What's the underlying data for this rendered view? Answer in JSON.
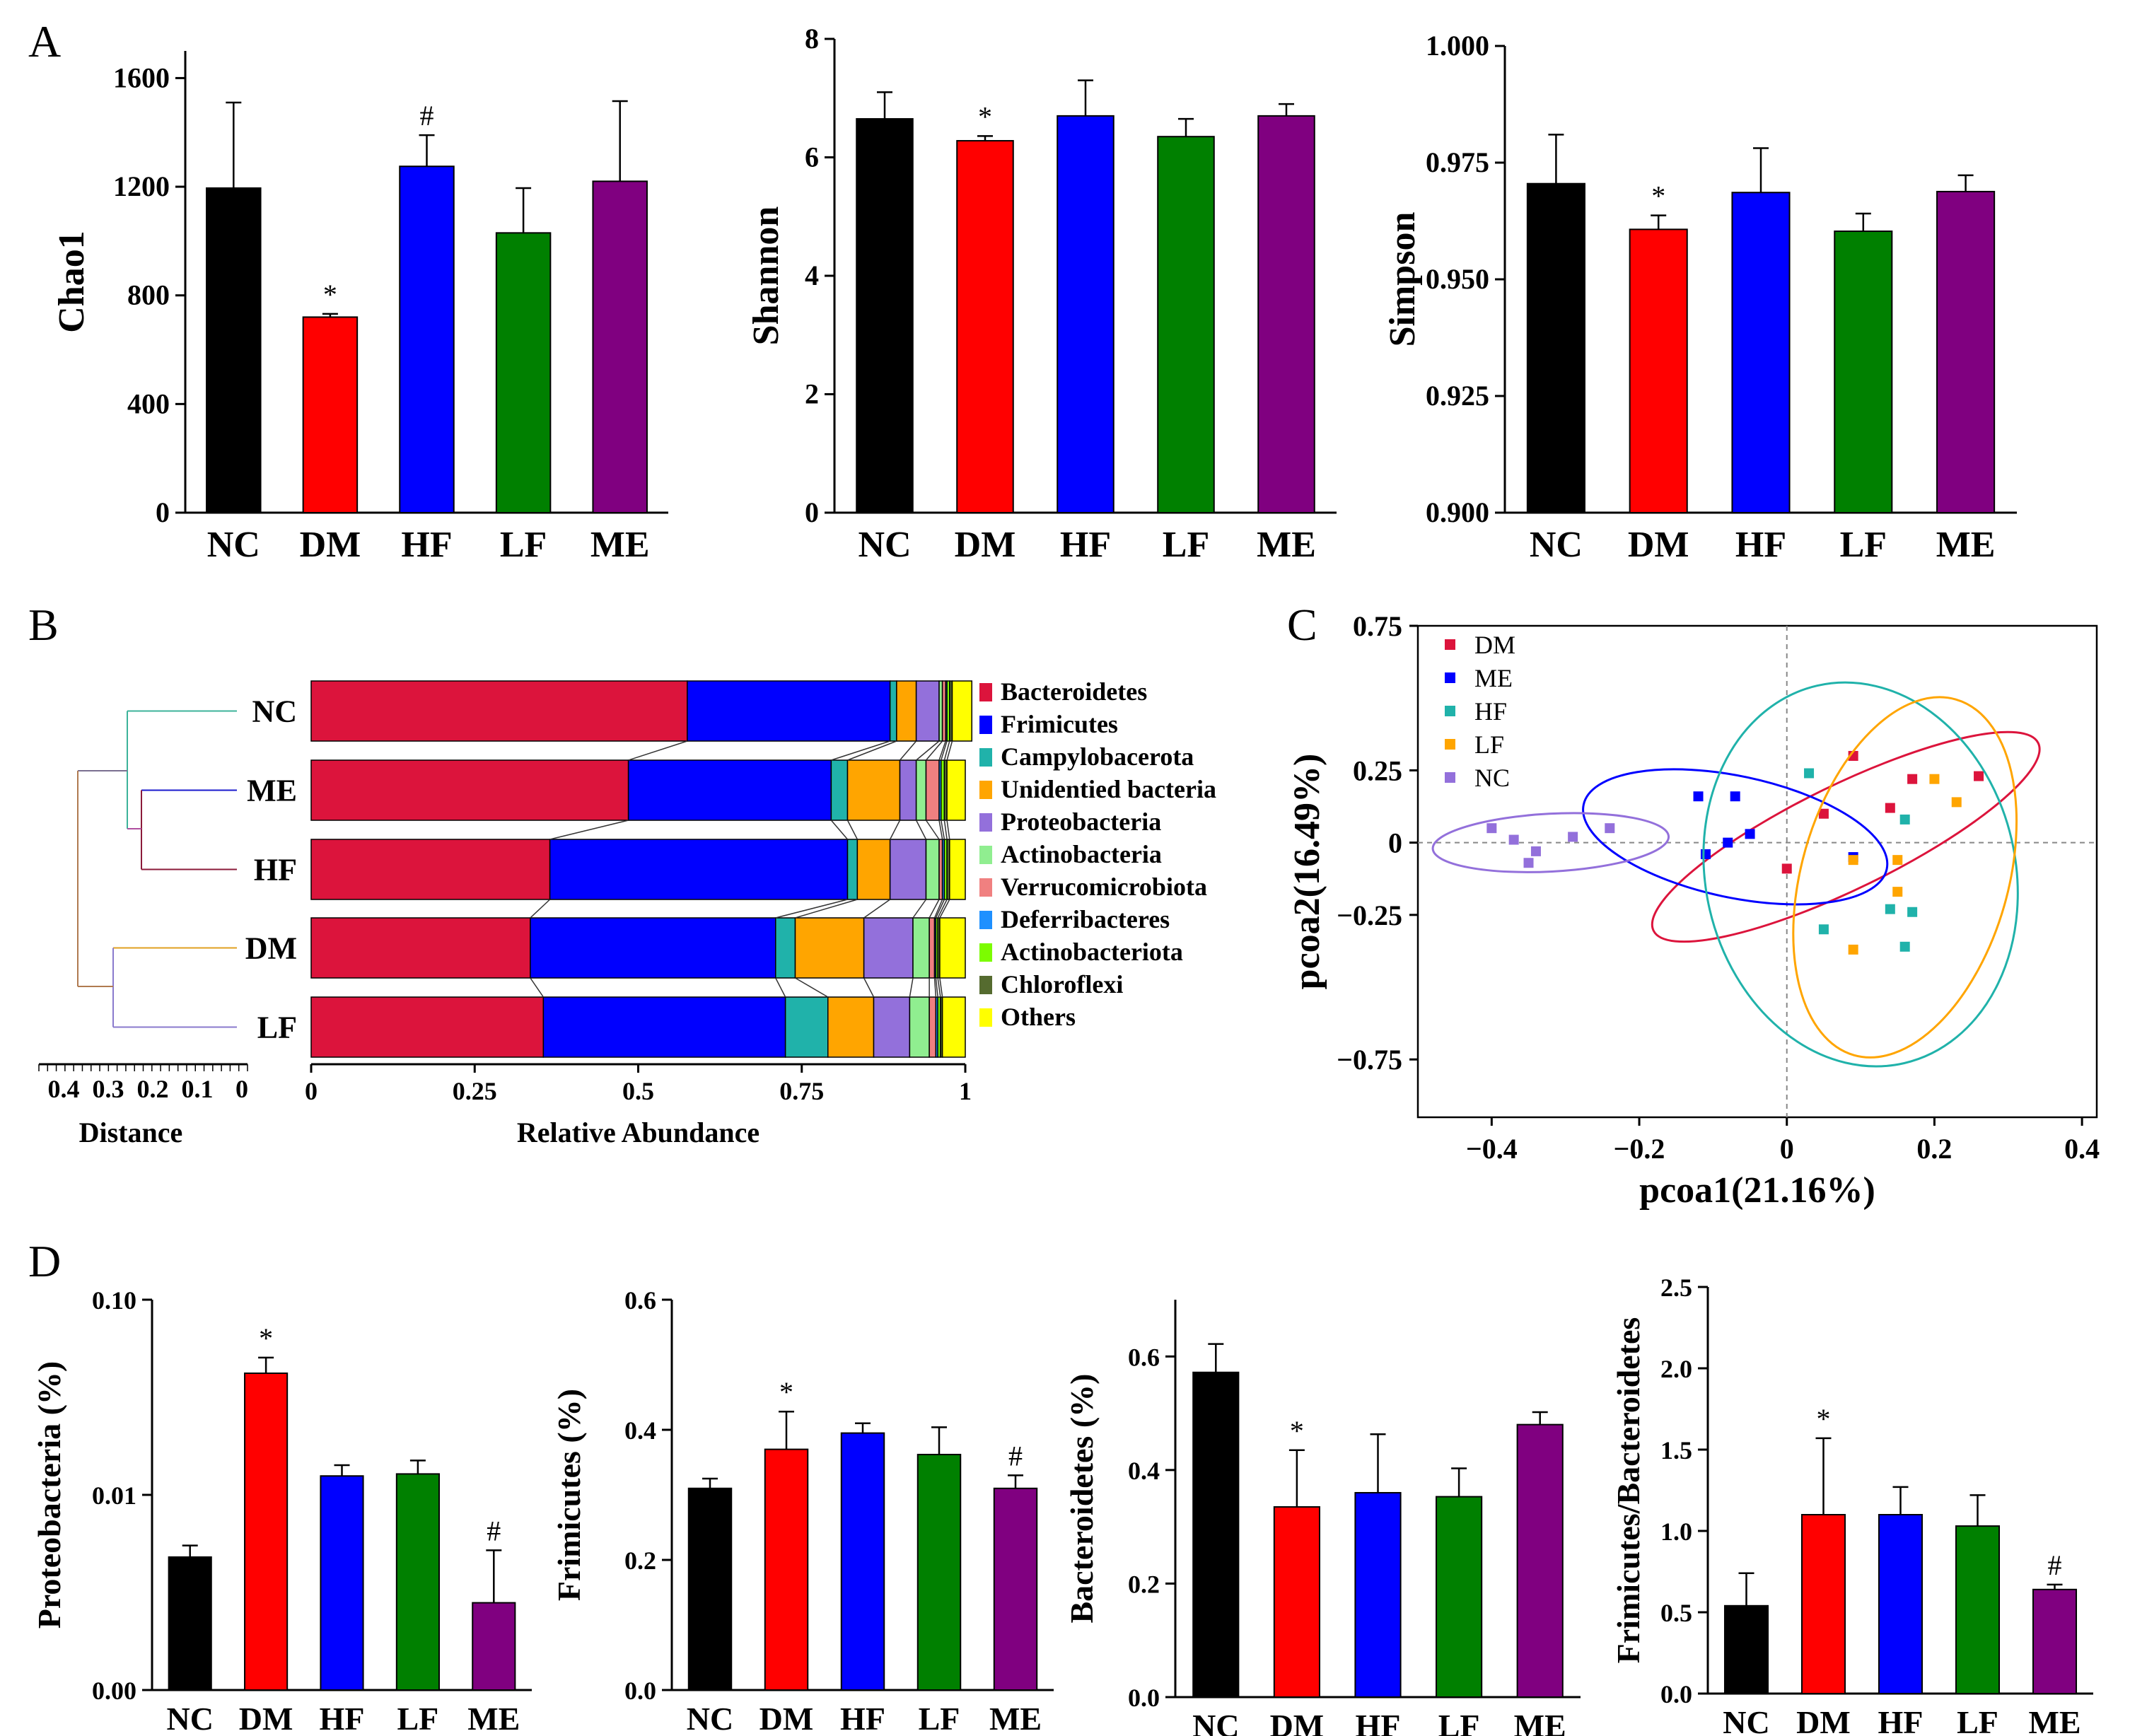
{
  "panels": {
    "a": "A",
    "b": "B",
    "c": "C",
    "d": "D"
  },
  "colors": {
    "NC": "#000000",
    "DM": "#ff0000",
    "HF": "#0000ff",
    "LF": "#008000",
    "ME": "#800080"
  },
  "chart_data": [
    {
      "id": "chao1",
      "type": "bar",
      "title": "",
      "xlabel": "",
      "ylabel": "Chao1",
      "categories": [
        "NC",
        "DM",
        "HF",
        "LF",
        "ME"
      ],
      "values": [
        1195,
        720,
        1275,
        1030,
        1220
      ],
      "errors": [
        315,
        12,
        115,
        165,
        295
      ],
      "ylim": [
        0,
        1700
      ],
      "yticks": [
        0,
        400,
        800,
        1200,
        1600
      ],
      "ytick_labels": [
        "0",
        "400",
        "800",
        "1200",
        "1600"
      ],
      "annotations": [
        "",
        "*",
        "#",
        "",
        ""
      ]
    },
    {
      "id": "shannon",
      "type": "bar",
      "title": "",
      "xlabel": "",
      "ylabel": "Shannon",
      "categories": [
        "NC",
        "DM",
        "HF",
        "LF",
        "ME"
      ],
      "values": [
        6.65,
        6.28,
        6.7,
        6.35,
        6.7
      ],
      "errors": [
        0.45,
        0.08,
        0.6,
        0.3,
        0.2
      ],
      "ylim": [
        0,
        8
      ],
      "yticks": [
        0,
        2,
        4,
        6,
        8
      ],
      "ytick_labels": [
        "0",
        "2",
        "4",
        "6",
        "8"
      ],
      "annotations": [
        "",
        "*",
        "",
        "",
        ""
      ]
    },
    {
      "id": "simpson",
      "type": "bar",
      "title": "",
      "xlabel": "",
      "ylabel": "Simpson",
      "categories": [
        "NC",
        "DM",
        "HF",
        "LF",
        "ME"
      ],
      "values": [
        0.9705,
        0.9607,
        0.9686,
        0.9603,
        0.9688
      ],
      "errors": [
        0.0105,
        0.003,
        0.0095,
        0.0038,
        0.0035
      ],
      "ylim": [
        0.9,
        1.0
      ],
      "yticks": [
        0.9,
        0.925,
        0.95,
        0.975,
        1.0
      ],
      "ytick_labels": [
        "0.900",
        "0.925",
        "0.950",
        "0.975",
        "1.000"
      ],
      "annotations": [
        "",
        "*",
        "",
        "",
        ""
      ]
    },
    {
      "id": "abundance",
      "type": "stacked_bar_horizontal",
      "title": "",
      "xlabel": "Relative Abundance",
      "dendrogram_label": "Distance",
      "groups": [
        "NC",
        "ME",
        "HF",
        "DM",
        "LF"
      ],
      "xlim": [
        0,
        1
      ],
      "xticks": [
        0,
        0.25,
        0.5,
        0.75,
        1
      ],
      "xtick_labels": [
        "0",
        "0.25",
        "0.5",
        "0.75",
        "1"
      ],
      "distance_ticks": [
        "0.4",
        "0.3",
        "0.2",
        "0.1",
        "0"
      ],
      "taxa": [
        {
          "name": "Bacteroidetes",
          "color": "#dc143c",
          "values": [
            0.575,
            0.485,
            0.365,
            0.335,
            0.355
          ]
        },
        {
          "name": "Frimicutes",
          "color": "#0000ff",
          "values": [
            0.31,
            0.31,
            0.455,
            0.375,
            0.37
          ]
        },
        {
          "name": "Campylobacerota",
          "color": "#20b2aa",
          "values": [
            0.01,
            0.025,
            0.015,
            0.03,
            0.065
          ]
        },
        {
          "name": "Unidentied bacteria",
          "color": "#ffa500",
          "values": [
            0.03,
            0.08,
            0.05,
            0.105,
            0.07
          ]
        },
        {
          "name": "Proteobacteria",
          "color": "#9370db",
          "values": [
            0.035,
            0.025,
            0.055,
            0.075,
            0.055
          ]
        },
        {
          "name": "Actinobacteria",
          "color": "#90ee90",
          "values": [
            0.005,
            0.015,
            0.02,
            0.025,
            0.03
          ]
        },
        {
          "name": "Verrucomicrobiota",
          "color": "#f08080",
          "values": [
            0.005,
            0.02,
            0.005,
            0.008,
            0.01
          ]
        },
        {
          "name": "Deferribacteres",
          "color": "#1e90ff",
          "values": [
            0.002,
            0.003,
            0.003,
            0.002,
            0.003
          ]
        },
        {
          "name": "Actinobacteriota",
          "color": "#7cfc00",
          "values": [
            0.004,
            0.005,
            0.004,
            0.003,
            0.004
          ]
        },
        {
          "name": "Chloroflexi",
          "color": "#556b2f",
          "values": [
            0.004,
            0.004,
            0.004,
            0.003,
            0.003
          ]
        },
        {
          "name": "Others",
          "color": "#ffff00",
          "values": [
            0.03,
            0.028,
            0.024,
            0.039,
            0.035
          ]
        }
      ]
    },
    {
      "id": "pcoa",
      "type": "scatter",
      "title": "",
      "xlabel": "pcoa1(21.16%)",
      "ylabel": "pcoa2(16.49%)",
      "xlim": [
        -0.5,
        0.42
      ],
      "ylim": [
        -0.95,
        0.75
      ],
      "xticks": [
        -0.4,
        -0.2,
        0,
        0.2,
        0.4
      ],
      "xtick_labels": [
        "−0.4",
        "−0.2",
        "0",
        "0.2",
        "0.4"
      ],
      "yticks": [
        -0.75,
        -0.25,
        0,
        0.25,
        0.75
      ],
      "ytick_labels": [
        "−0.75",
        "−0.25",
        "0",
        "0.25",
        "0.75"
      ],
      "series": [
        {
          "name": "DM",
          "color": "#dc143c",
          "points": [
            [
              0.09,
              0.3
            ],
            [
              0.17,
              0.22
            ],
            [
              0.26,
              0.23
            ],
            [
              0.05,
              0.1
            ],
            [
              0.14,
              0.12
            ],
            [
              0.0,
              -0.09
            ]
          ],
          "ellipse": {
            "cx": 0.08,
            "cy": 0.02,
            "rx": 0.29,
            "ry": 0.18,
            "angle_deg": 26
          }
        },
        {
          "name": "ME",
          "color": "#0000ff",
          "points": [
            [
              -0.12,
              0.16
            ],
            [
              -0.07,
              0.16
            ],
            [
              -0.05,
              0.03
            ],
            [
              -0.08,
              0.0
            ],
            [
              -0.11,
              -0.04
            ],
            [
              0.09,
              -0.05
            ]
          ],
          "ellipse": {
            "cx": -0.07,
            "cy": 0.02,
            "rx": 0.21,
            "ry": 0.21,
            "angle_deg": -12
          }
        },
        {
          "name": "HF",
          "color": "#20b2aa",
          "points": [
            [
              0.03,
              0.24
            ],
            [
              0.16,
              0.08
            ],
            [
              0.14,
              -0.23
            ],
            [
              0.17,
              -0.24
            ],
            [
              0.05,
              -0.3
            ],
            [
              0.16,
              -0.36
            ]
          ],
          "ellipse": {
            "cx": 0.1,
            "cy": -0.11,
            "rx": 0.21,
            "ry": 0.67,
            "angle_deg": 13
          }
        },
        {
          "name": "LF",
          "color": "#ffa500",
          "points": [
            [
              0.2,
              0.22
            ],
            [
              0.23,
              0.14
            ],
            [
              0.09,
              -0.06
            ],
            [
              0.15,
              -0.06
            ],
            [
              0.15,
              -0.17
            ],
            [
              0.09,
              -0.37
            ]
          ],
          "ellipse": {
            "cx": 0.16,
            "cy": -0.12,
            "rx": 0.14,
            "ry": 0.64,
            "angle_deg": -16
          }
        },
        {
          "name": "NC",
          "color": "#9370db",
          "points": [
            [
              -0.4,
              0.05
            ],
            [
              -0.37,
              0.01
            ],
            [
              -0.34,
              -0.03
            ],
            [
              -0.35,
              -0.07
            ],
            [
              -0.29,
              0.02
            ],
            [
              -0.24,
              0.05
            ]
          ],
          "ellipse": {
            "cx": -0.32,
            "cy": 0.0,
            "rx": 0.16,
            "ry": 0.1,
            "angle_deg": 3
          }
        }
      ]
    },
    {
      "id": "proteobacteria",
      "type": "bar",
      "scale": "log",
      "title": "",
      "xlabel": "",
      "ylabel": "Proteobacteria (%)",
      "categories": [
        "NC",
        "DM",
        "HF",
        "LF",
        "ME"
      ],
      "values": [
        0.0048,
        0.042,
        0.0125,
        0.0128,
        0.0028
      ],
      "errors": [
        0.0007,
        0.0085,
        0.0017,
        0.0022,
        0.0024
      ],
      "ylim": [
        0.001,
        0.1
      ],
      "yticks": [
        0.001,
        0.01,
        0.1
      ],
      "ytick_labels": [
        "0.00",
        "0.01",
        "0.10"
      ],
      "annotations": [
        "",
        "*",
        "",
        "",
        "#"
      ]
    },
    {
      "id": "frimicutes",
      "type": "bar",
      "title": "",
      "xlabel": "",
      "ylabel": "Frimicutes (%)",
      "categories": [
        "NC",
        "DM",
        "HF",
        "LF",
        "ME"
      ],
      "values": [
        0.31,
        0.37,
        0.395,
        0.362,
        0.31
      ],
      "errors": [
        0.015,
        0.058,
        0.015,
        0.042,
        0.02
      ],
      "ylim": [
        0,
        0.6
      ],
      "yticks": [
        0,
        0.2,
        0.4,
        0.6
      ],
      "ytick_labels": [
        "0.0",
        "0.2",
        "0.4",
        "0.6"
      ],
      "annotations": [
        "",
        "*",
        "",
        "",
        "#"
      ]
    },
    {
      "id": "bacteroidetes",
      "type": "bar",
      "title": "",
      "xlabel": "",
      "ylabel": "Bacteroidetes (%)",
      "categories": [
        "NC",
        "DM",
        "HF",
        "LF",
        "ME"
      ],
      "values": [
        0.572,
        0.335,
        0.36,
        0.353,
        0.48
      ],
      "errors": [
        0.05,
        0.1,
        0.103,
        0.05,
        0.022
      ],
      "ylim": [
        0,
        0.7
      ],
      "yticks": [
        0,
        0.2,
        0.4,
        0.6
      ],
      "ytick_labels": [
        "0.0",
        "0.2",
        "0.4",
        "0.6"
      ],
      "annotations": [
        "",
        "*",
        "",
        "",
        ""
      ]
    },
    {
      "id": "ratio",
      "type": "bar",
      "title": "",
      "xlabel": "",
      "ylabel": "Frimicutes/Bacteroidetes",
      "categories": [
        "NC",
        "DM",
        "HF",
        "LF",
        "ME"
      ],
      "values": [
        0.54,
        1.1,
        1.1,
        1.03,
        0.64
      ],
      "errors": [
        0.2,
        0.47,
        0.17,
        0.19,
        0.03
      ],
      "ylim": [
        0,
        2.5
      ],
      "yticks": [
        0,
        0.5,
        1.0,
        1.5,
        2.0,
        2.5
      ],
      "ytick_labels": [
        "0.0",
        "0.5",
        "1.0",
        "1.5",
        "2.0",
        "2.5"
      ],
      "annotations": [
        "",
        "*",
        "",
        "",
        "#"
      ]
    }
  ]
}
